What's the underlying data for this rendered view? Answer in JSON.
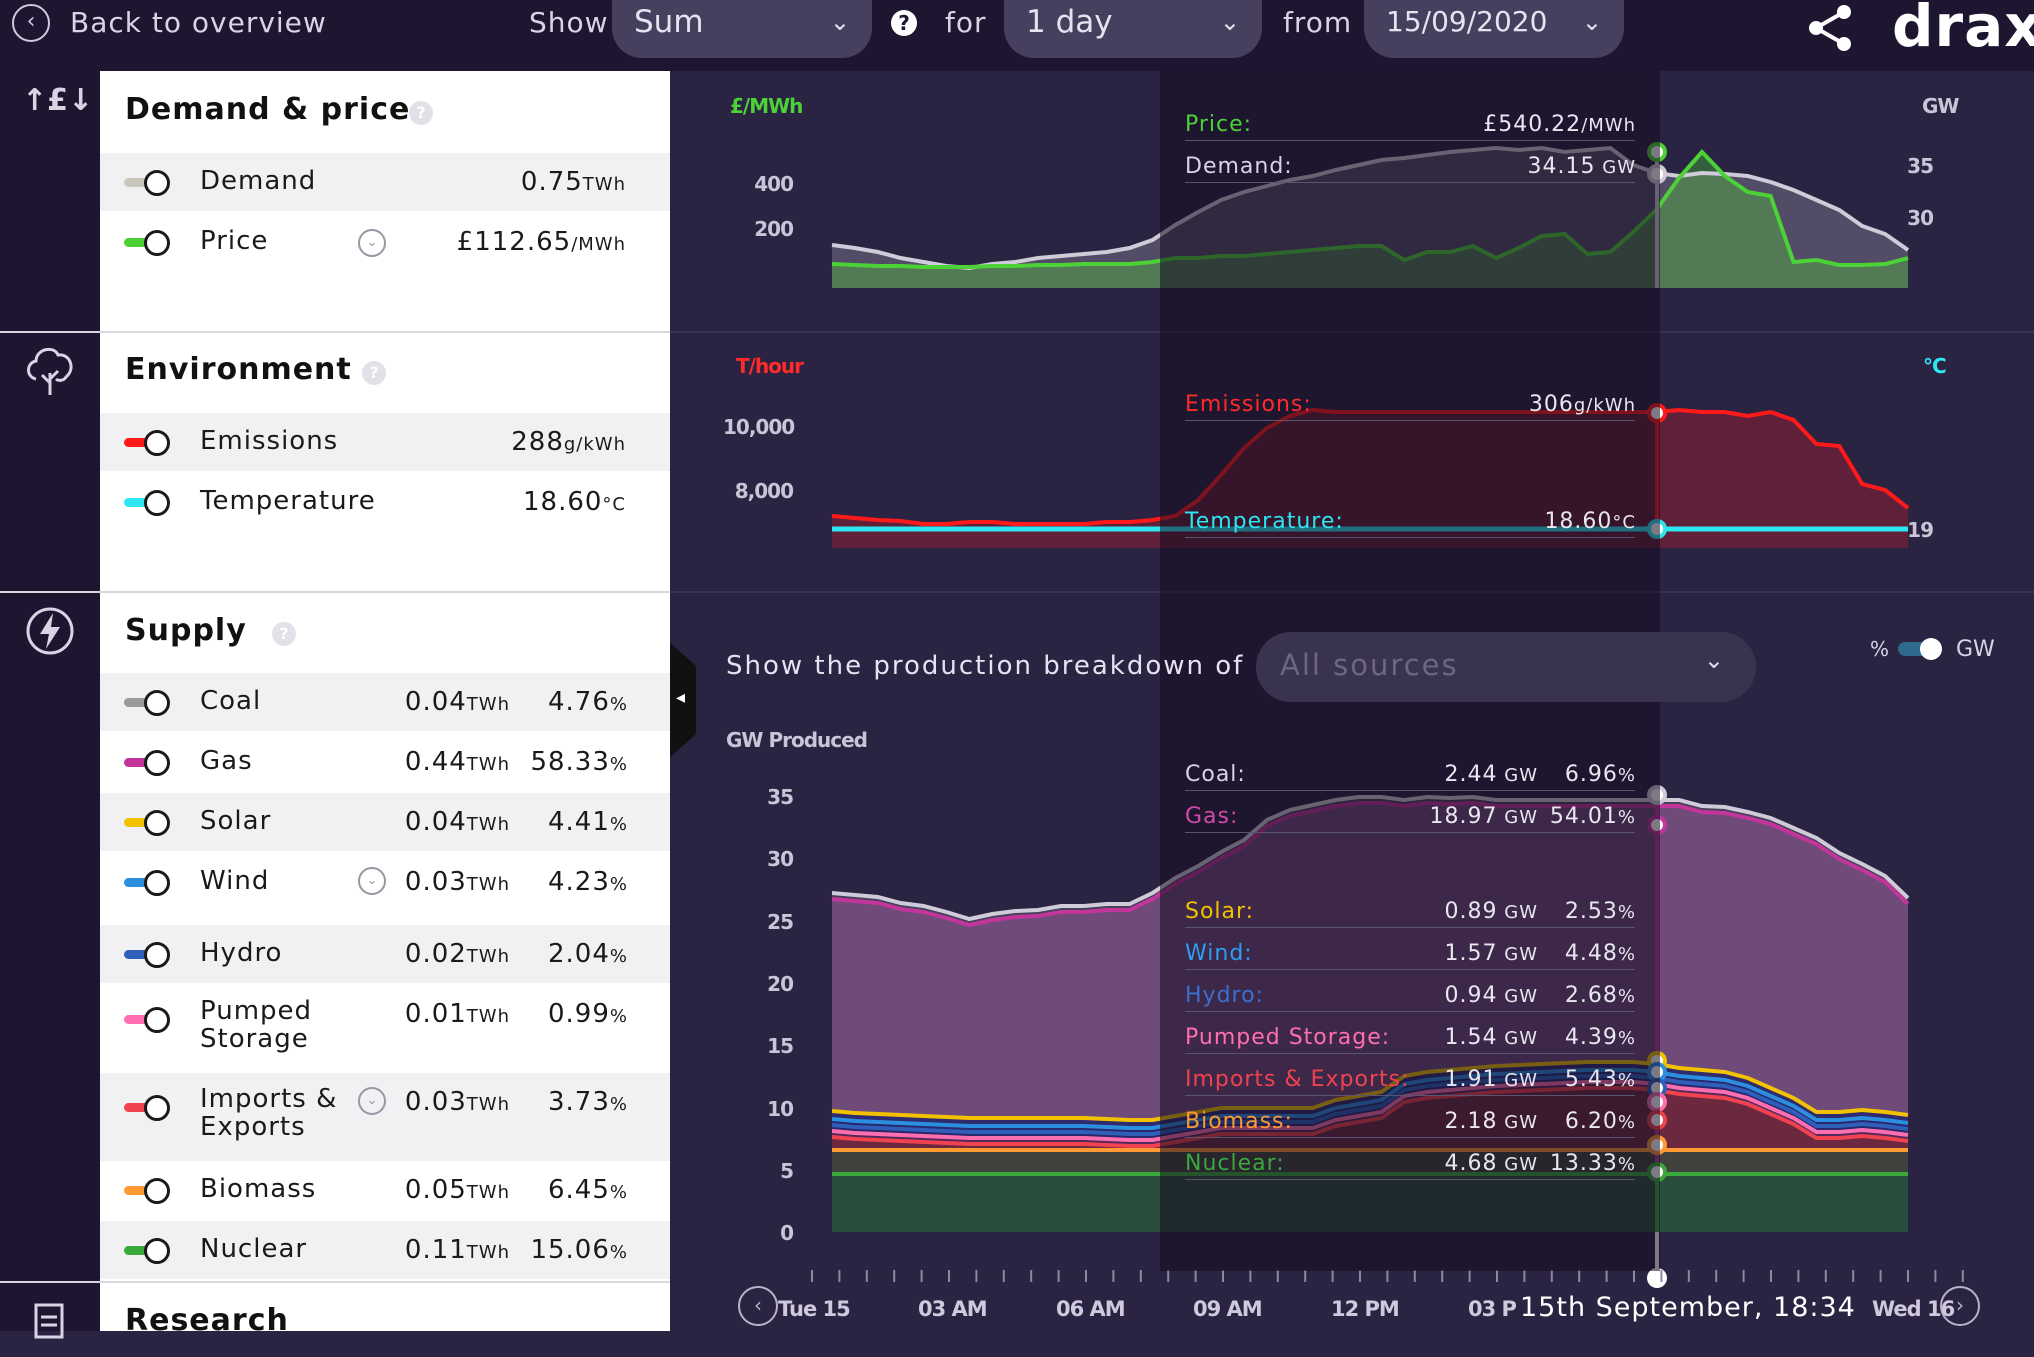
{
  "topbar": {
    "back_label": "Back to overview",
    "show_label": "Show",
    "show_value": "Sum",
    "for_label": "for",
    "for_value": "1 day",
    "from_label": "from",
    "from_value": "15/09/2020",
    "help_glyph": "?",
    "brand": "drax"
  },
  "demand_price": {
    "title": "Demand & price",
    "rows": [
      {
        "label": "Demand",
        "value": "0.75",
        "unit": "TWh",
        "color": "#c9c6bb"
      },
      {
        "label": "Price",
        "value": "£112.65",
        "unit": "/MWh",
        "color": "#4cd137"
      }
    ]
  },
  "environment": {
    "title": "Environment",
    "rows": [
      {
        "label": "Emissions",
        "value": "288",
        "unit": "g/kWh",
        "color": "#ff1a1a"
      },
      {
        "label": "Temperature",
        "value": "18.60",
        "unit": "°C",
        "color": "#2ee6f0"
      }
    ]
  },
  "supply": {
    "title": "Supply",
    "rows": [
      {
        "label": "Coal",
        "twh": "0.04",
        "pct": "4.76",
        "color": "#9a9a9a"
      },
      {
        "label": "Gas",
        "twh": "0.44",
        "pct": "58.33",
        "color": "#c2359a"
      },
      {
        "label": "Solar",
        "twh": "0.04",
        "pct": "4.41",
        "color": "#f2c200"
      },
      {
        "label": "Wind",
        "twh": "0.03",
        "pct": "4.23",
        "color": "#2b8fe0"
      },
      {
        "label": "Hydro",
        "twh": "0.02",
        "pct": "2.04",
        "color": "#2f5fb8"
      },
      {
        "label": "Pumped Storage",
        "label1": "Pumped",
        "label2": "Storage",
        "twh": "0.01",
        "pct": "0.99",
        "color": "#ff6fb0"
      },
      {
        "label": "Imports & Exports",
        "label1": "Imports &",
        "label2": "Exports",
        "twh": "0.03",
        "pct": "3.73",
        "color": "#f0424f"
      },
      {
        "label": "Biomass",
        "twh": "0.05",
        "pct": "6.45",
        "color": "#ff9933"
      },
      {
        "label": "Nuclear",
        "twh": "0.11",
        "pct": "15.06",
        "color": "#3aa83a"
      }
    ],
    "twh_unit": "TWh",
    "pct_unit": "%"
  },
  "research_title": "Research",
  "price_chart": {
    "left_unit": "£/MWh",
    "right_unit": "GW",
    "left_ticks": [
      "400",
      "200"
    ],
    "right_ticks": [
      "35",
      "30"
    ],
    "tooltip": [
      {
        "label": "Price:",
        "value": "£540.22",
        "unit": "/MWh",
        "color": "#4cd137"
      },
      {
        "label": "Demand:",
        "value": "34.15",
        "unit": " GW",
        "color": "#d8d4e4"
      }
    ]
  },
  "env_chart": {
    "left_unit": "T/hour",
    "right_unit": "°C",
    "left_ticks": [
      "10,000",
      "8,000"
    ],
    "right_ticks": [
      "19"
    ],
    "tooltip": [
      {
        "label": "Emissions:",
        "value": "306",
        "unit": "g/kWh",
        "color": "#ff2a2a"
      },
      {
        "label": "Temperature:",
        "value": "18.60",
        "unit": "°C",
        "color": "#2ee6f0"
      }
    ]
  },
  "supply_chart": {
    "breakdown_label": "Show the production breakdown of",
    "breakdown_value": "All sources",
    "unit_toggle_pct": "%",
    "unit_toggle_gw": "GW",
    "y_title": "GW Produced",
    "y_ticks": [
      "35",
      "30",
      "25",
      "20",
      "15",
      "10",
      "5",
      "0"
    ],
    "tooltip": [
      {
        "label": "Coal:",
        "gw": "2.44",
        "pct": "6.96",
        "color": "#d8d4e4"
      },
      {
        "label": "Gas:",
        "gw": "18.97",
        "pct": "54.01",
        "color": "#d04aa8"
      },
      {
        "label": "Solar:",
        "gw": "0.89",
        "pct": "2.53",
        "color": "#f2c200"
      },
      {
        "label": "Wind:",
        "gw": "1.57",
        "pct": "4.48",
        "color": "#2b9ff0"
      },
      {
        "label": "Hydro:",
        "gw": "0.94",
        "pct": "2.68",
        "color": "#3a6fd0"
      },
      {
        "label": "Pumped Storage:",
        "gw": "1.54",
        "pct": "4.39",
        "color": "#ff6fb0"
      },
      {
        "label": "Imports & Exports:",
        "gw": "1.91",
        "pct": "5.43",
        "color": "#f0424f"
      },
      {
        "label": "Biomass:",
        "gw": "2.18",
        "pct": "6.20",
        "color": "#ff9933"
      },
      {
        "label": "Nuclear:",
        "gw": "4.68",
        "pct": "13.33",
        "color": "#3aa83a"
      }
    ],
    "gw_unit": " GW",
    "pct_unit": "%"
  },
  "xaxis": {
    "labels": [
      "Tue 15",
      "03 AM",
      "06 AM",
      "09 AM",
      "12 PM",
      "03 P",
      "Wed 16"
    ],
    "cursor_label": "15th September, 18:34"
  }
}
